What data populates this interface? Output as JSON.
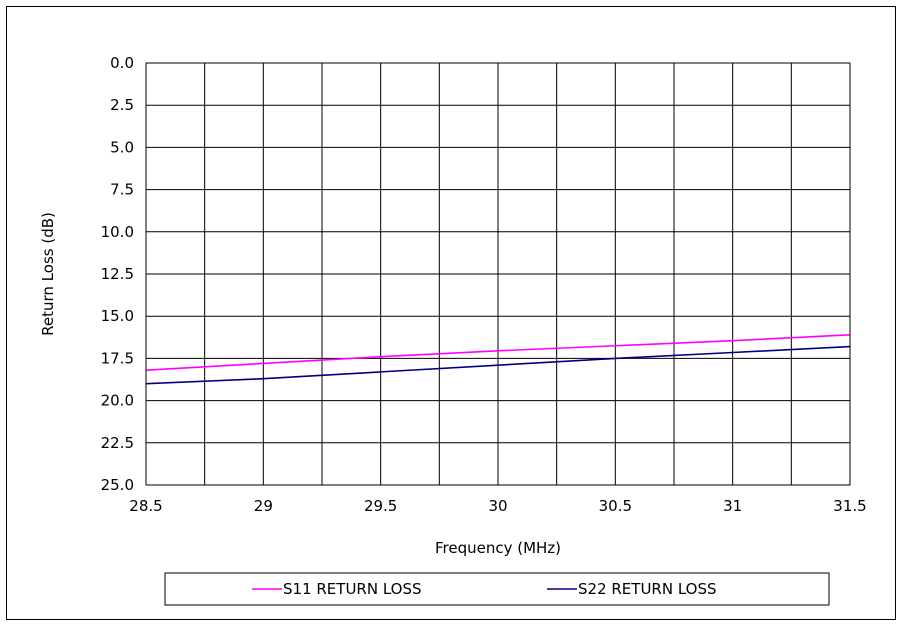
{
  "chart_data": {
    "type": "line",
    "xlabel": "Frequency (MHz)",
    "ylabel": "Return Loss (dB)",
    "xlim": [
      28.5,
      31.5
    ],
    "ylim": [
      0,
      25
    ],
    "y_reversed": true,
    "x_ticks": [
      28.5,
      29,
      29.5,
      30,
      30.5,
      31,
      31.5
    ],
    "x_tick_labels": [
      "28.5",
      "29",
      "29.5",
      "30",
      "30.5",
      "31",
      "31.5"
    ],
    "x_minor_step": 0.25,
    "y_ticks": [
      0,
      2.5,
      5,
      7.5,
      10,
      12.5,
      15,
      17.5,
      20,
      22.5,
      25
    ],
    "y_tick_labels": [
      "0.0",
      "2.5",
      "5.0",
      "7.5",
      "10.0",
      "12.5",
      "15.0",
      "17.5",
      "20.0",
      "22.5",
      "25.0"
    ],
    "grid": true,
    "legend_position": "bottom",
    "series": [
      {
        "name": "S11 RETURN LOSS",
        "color": "#ff00ff",
        "x": [
          28.5,
          29.0,
          29.5,
          30.0,
          30.5,
          31.0,
          31.5
        ],
        "y": [
          18.2,
          17.8,
          17.4,
          17.05,
          16.75,
          16.45,
          16.1
        ]
      },
      {
        "name": "S22 RETURN LOSS",
        "color": "#000080",
        "x": [
          28.5,
          29.0,
          29.5,
          30.0,
          30.5,
          31.0,
          31.5
        ],
        "y": [
          19.0,
          18.7,
          18.3,
          17.9,
          17.5,
          17.15,
          16.8
        ]
      }
    ]
  }
}
